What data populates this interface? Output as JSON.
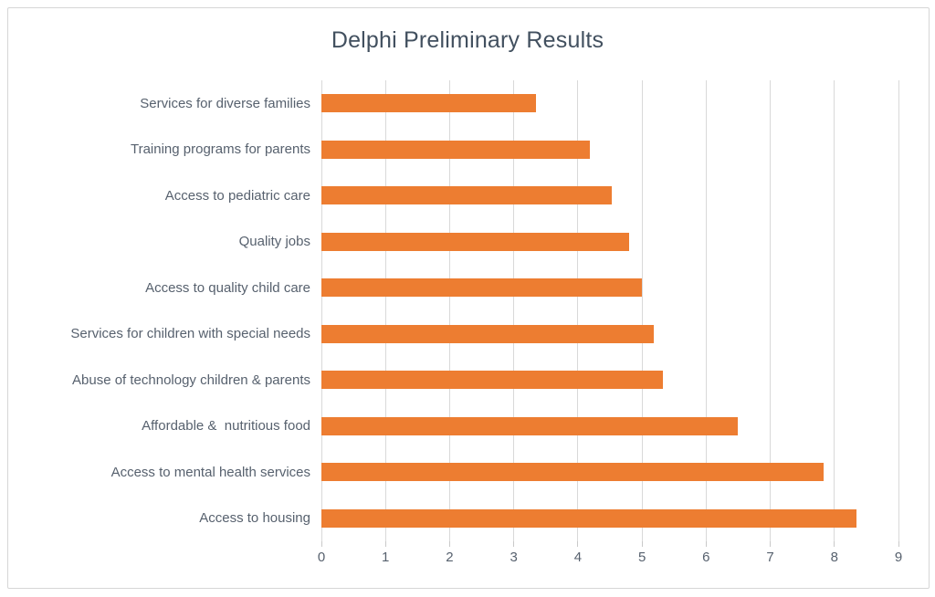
{
  "chart_data": {
    "type": "bar",
    "orientation": "horizontal",
    "title": "Delphi Preliminary Results",
    "categories": [
      "Services for diverse families",
      "Training programs for parents",
      "Access to pediatric care",
      "Quality jobs",
      "Access to quality child care",
      "Services for children with special needs",
      "Abuse of technology children & parents",
      "Affordable &  nutritious food",
      "Access to mental health services",
      "Access to housing"
    ],
    "values": [
      3.35,
      4.18,
      4.53,
      4.8,
      5.0,
      5.18,
      5.33,
      6.5,
      7.83,
      8.35
    ],
    "category_order": "top-to-bottom",
    "xlabel": "",
    "ylabel": "",
    "xlim": [
      0,
      9
    ],
    "x_ticks": [
      0,
      1,
      2,
      3,
      4,
      5,
      6,
      7,
      8,
      9
    ],
    "grid": "vertical-major-only",
    "legend": "none"
  },
  "colors": {
    "bar_fill": "#ED7D31",
    "gridline": "#D9D9D9",
    "tick_mark": "#C9C9C9",
    "frame_border": "#D6D6D6",
    "title_text": "#42505F",
    "axis_text": "#57616E",
    "background": "#FFFFFF"
  }
}
